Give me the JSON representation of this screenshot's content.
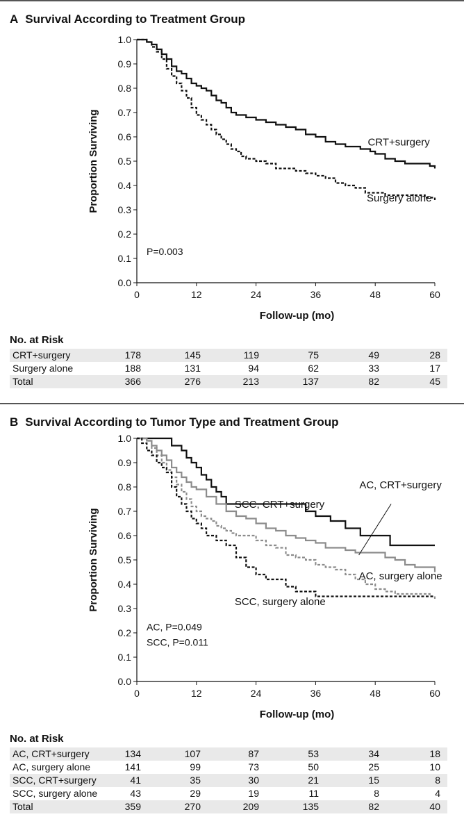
{
  "chart_data": [
    {
      "type": "line",
      "panel_letter": "A",
      "title": "Survival According to Treatment Group",
      "xlabel": "Follow-up (mo)",
      "ylabel": "Proportion Surviving",
      "xlim": [
        0,
        60
      ],
      "ylim": [
        0,
        1.0
      ],
      "x_ticks": [
        "0",
        "12",
        "24",
        "36",
        "48",
        "60"
      ],
      "y_ticks": [
        "0.0",
        "0.1",
        "0.2",
        "0.3",
        "0.4",
        "0.5",
        "0.6",
        "0.7",
        "0.8",
        "0.9",
        "1.0"
      ],
      "grid": false,
      "p_value_text": "P=0.003",
      "series": [
        {
          "name": "CRT+surgery",
          "color": "#111111",
          "dash": "solid",
          "x": [
            0,
            1,
            2,
            3,
            4,
            5,
            6,
            7,
            8,
            9,
            10,
            11,
            12,
            13,
            14,
            15,
            16,
            17,
            18,
            19,
            20,
            21,
            22,
            23,
            24,
            26,
            28,
            30,
            32,
            34,
            36,
            38,
            40,
            42,
            44,
            45,
            46,
            47,
            48,
            50,
            52,
            54,
            56,
            58,
            59,
            60
          ],
          "y": [
            1.0,
            1.0,
            0.99,
            0.98,
            0.96,
            0.94,
            0.92,
            0.89,
            0.87,
            0.86,
            0.84,
            0.82,
            0.81,
            0.8,
            0.79,
            0.77,
            0.75,
            0.74,
            0.72,
            0.7,
            0.69,
            0.69,
            0.68,
            0.68,
            0.67,
            0.66,
            0.65,
            0.64,
            0.63,
            0.61,
            0.6,
            0.58,
            0.57,
            0.56,
            0.56,
            0.55,
            0.55,
            0.54,
            0.53,
            0.51,
            0.5,
            0.49,
            0.49,
            0.49,
            0.48,
            0.47
          ]
        },
        {
          "name": "Surgery alone",
          "color": "#111111",
          "dash": "dashed",
          "x": [
            0,
            1,
            2,
            3,
            4,
            5,
            6,
            7,
            8,
            9,
            10,
            11,
            12,
            13,
            14,
            15,
            16,
            17,
            18,
            19,
            20,
            21,
            22,
            24,
            26,
            28,
            30,
            32,
            34,
            36,
            38,
            40,
            42,
            44,
            46,
            48,
            50,
            52,
            54,
            56,
            58,
            59,
            60
          ],
          "y": [
            1.0,
            1.0,
            0.99,
            0.97,
            0.95,
            0.92,
            0.88,
            0.85,
            0.82,
            0.79,
            0.76,
            0.72,
            0.69,
            0.67,
            0.65,
            0.63,
            0.61,
            0.59,
            0.57,
            0.55,
            0.54,
            0.52,
            0.51,
            0.5,
            0.49,
            0.47,
            0.47,
            0.46,
            0.45,
            0.44,
            0.43,
            0.41,
            0.4,
            0.39,
            0.37,
            0.37,
            0.36,
            0.36,
            0.36,
            0.36,
            0.35,
            0.35,
            0.34
          ]
        }
      ],
      "annotations": [
        {
          "text": "CRT+surgery",
          "x": 46.5,
          "y": 0.565
        },
        {
          "text": "Surgery alone",
          "x": 46.3,
          "y": 0.335
        }
      ],
      "risk_table": {
        "title": "No. at Risk",
        "rows": [
          {
            "label": "CRT+surgery",
            "values": [
              "178",
              "145",
              "119",
              "75",
              "49",
              "28"
            ]
          },
          {
            "label": "Surgery alone",
            "values": [
              "188",
              "131",
              "94",
              "62",
              "33",
              "17"
            ]
          },
          {
            "label": "Total",
            "values": [
              "366",
              "276",
              "213",
              "137",
              "82",
              "45"
            ]
          }
        ]
      }
    },
    {
      "type": "line",
      "panel_letter": "B",
      "title": "Survival According to Tumor Type and Treatment Group",
      "xlabel": "Follow-up (mo)",
      "ylabel": "Proportion Surviving",
      "xlim": [
        0,
        60
      ],
      "ylim": [
        0,
        1.0
      ],
      "x_ticks": [
        "0",
        "12",
        "24",
        "36",
        "48",
        "60"
      ],
      "y_ticks": [
        "0.0",
        "0.1",
        "0.2",
        "0.3",
        "0.4",
        "0.5",
        "0.6",
        "0.7",
        "0.8",
        "0.9",
        "1.0"
      ],
      "grid": false,
      "p_value_lines": [
        "AC, P=0.049",
        "SCC, P=0.011"
      ],
      "series": [
        {
          "name": "SCC, CRT+surgery",
          "color": "#111111",
          "dash": "solid",
          "x": [
            0,
            6,
            7,
            8,
            9,
            10,
            11,
            12,
            13,
            14,
            15,
            16,
            17,
            18,
            21,
            24,
            27,
            30,
            33,
            34,
            36,
            39,
            42,
            45,
            48,
            51,
            60
          ],
          "y": [
            1.0,
            1.0,
            0.97,
            0.97,
            0.95,
            0.92,
            0.9,
            0.88,
            0.85,
            0.83,
            0.8,
            0.78,
            0.76,
            0.73,
            0.73,
            0.73,
            0.73,
            0.73,
            0.73,
            0.7,
            0.68,
            0.66,
            0.63,
            0.6,
            0.6,
            0.56,
            0.56
          ]
        },
        {
          "name": "AC, CRT+surgery",
          "color": "#8c8c8c",
          "dash": "solid",
          "x": [
            0,
            2,
            3,
            4,
            5,
            6,
            7,
            8,
            9,
            10,
            11,
            12,
            14,
            16,
            18,
            20,
            22,
            24,
            26,
            28,
            30,
            32,
            34,
            36,
            38,
            40,
            42,
            44,
            46,
            48,
            50,
            52,
            54,
            56,
            58,
            59,
            60
          ],
          "y": [
            1.0,
            0.99,
            0.97,
            0.95,
            0.93,
            0.91,
            0.88,
            0.86,
            0.84,
            0.82,
            0.8,
            0.79,
            0.76,
            0.73,
            0.7,
            0.68,
            0.67,
            0.65,
            0.63,
            0.62,
            0.6,
            0.59,
            0.58,
            0.57,
            0.55,
            0.55,
            0.54,
            0.53,
            0.53,
            0.53,
            0.51,
            0.5,
            0.48,
            0.47,
            0.47,
            0.47,
            0.45
          ]
        },
        {
          "name": "AC, surgery alone",
          "color": "#8c8c8c",
          "dash": "dashed",
          "x": [
            0,
            2,
            3,
            4,
            5,
            6,
            7,
            8,
            9,
            10,
            11,
            12,
            13,
            14,
            15,
            16,
            17,
            18,
            19,
            20,
            21,
            22,
            24,
            26,
            28,
            30,
            32,
            34,
            36,
            38,
            40,
            42,
            44,
            46,
            48,
            50,
            52,
            56,
            59,
            60
          ],
          "y": [
            1.0,
            0.99,
            0.96,
            0.93,
            0.9,
            0.87,
            0.84,
            0.81,
            0.78,
            0.75,
            0.72,
            0.7,
            0.68,
            0.67,
            0.66,
            0.64,
            0.63,
            0.62,
            0.61,
            0.6,
            0.6,
            0.6,
            0.58,
            0.56,
            0.55,
            0.52,
            0.51,
            0.5,
            0.48,
            0.47,
            0.46,
            0.44,
            0.42,
            0.4,
            0.38,
            0.37,
            0.36,
            0.36,
            0.35,
            0.34
          ]
        },
        {
          "name": "SCC, surgery alone",
          "color": "#111111",
          "dash": "dashed",
          "x": [
            0,
            1,
            2,
            3,
            4,
            5,
            6,
            7,
            8,
            9,
            10,
            11,
            12,
            13,
            14,
            16,
            18,
            20,
            22,
            24,
            26,
            28,
            30,
            32,
            34,
            36,
            60
          ],
          "y": [
            1.0,
            0.98,
            0.95,
            0.93,
            0.9,
            0.88,
            0.86,
            0.8,
            0.76,
            0.73,
            0.7,
            0.67,
            0.65,
            0.63,
            0.6,
            0.58,
            0.56,
            0.51,
            0.47,
            0.44,
            0.42,
            0.42,
            0.39,
            0.37,
            0.37,
            0.35,
            0.35
          ]
        }
      ],
      "annotations": [
        {
          "text": "SCC, CRT+surgery",
          "x": 19.7,
          "y": 0.715
        },
        {
          "text": "AC, CRT+surgery",
          "x": 44.8,
          "y": 0.795
        },
        {
          "text": "AC, surgery alone",
          "x": 44.7,
          "y": 0.42
        },
        {
          "text": "SCC, surgery alone",
          "x": 19.7,
          "y": 0.315
        }
      ],
      "leader_line": {
        "from": [
          51.2,
          0.73
        ],
        "to": [
          44.7,
          0.52
        ]
      },
      "risk_table": {
        "title": "No. at Risk",
        "rows": [
          {
            "label": "AC, CRT+surgery",
            "values": [
              "134",
              "107",
              "87",
              "53",
              "34",
              "18"
            ]
          },
          {
            "label": "AC, surgery alone",
            "values": [
              "141",
              "99",
              "73",
              "50",
              "25",
              "10"
            ]
          },
          {
            "label": "SCC, CRT+surgery",
            "values": [
              "41",
              "35",
              "30",
              "21",
              "15",
              "8"
            ]
          },
          {
            "label": "SCC, surgery alone",
            "values": [
              "43",
              "29",
              "19",
              "11",
              "8",
              "4"
            ]
          },
          {
            "label": "Total",
            "values": [
              "359",
              "270",
              "209",
              "135",
              "82",
              "40"
            ]
          }
        ]
      }
    }
  ]
}
